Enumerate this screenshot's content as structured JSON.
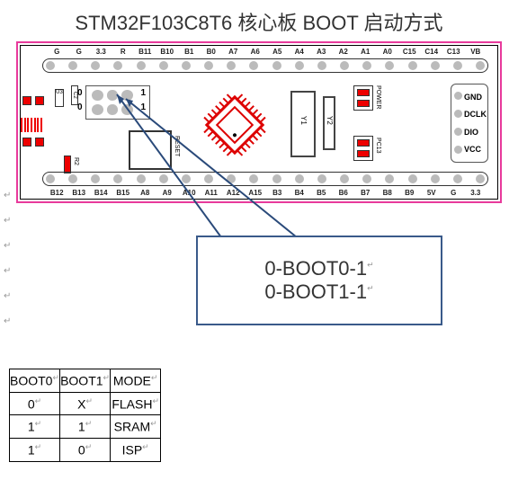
{
  "title": "STM32F103C8T6 核心板 BOOT 启动方式",
  "board": {
    "pins_top": [
      "G",
      "G",
      "3.3",
      "R",
      "B11",
      "B10",
      "B1",
      "B0",
      "A7",
      "A6",
      "A5",
      "A4",
      "A3",
      "A2",
      "A1",
      "A0",
      "C15",
      "C14",
      "C13",
      "VB"
    ],
    "pins_bot": [
      "B12",
      "B13",
      "B14",
      "B15",
      "A8",
      "A9",
      "A10",
      "A11",
      "A12",
      "A15",
      "B3",
      "B4",
      "B5",
      "B6",
      "B7",
      "B8",
      "B9",
      "5V",
      "G",
      "3.3"
    ],
    "border_outer_color": "#e83a9c",
    "border_inner_color": "#000000",
    "hole_color": "#bbbbbb",
    "red": "#e00000",
    "comp_u3": "U3",
    "comp_c2": "C2",
    "comp_r2": "R2",
    "boot": {
      "left0": "0",
      "left1": "0",
      "right0": "1",
      "right1": "1"
    },
    "reset_label": "RESET",
    "osc_y1": "Y1",
    "osc_y2": "Y2",
    "led_power": "POWER",
    "led_pc13": "PC13",
    "swd_pins": [
      "GND",
      "DCLK",
      "DIO",
      "VCC"
    ]
  },
  "callout": {
    "line1": "0-BOOT0-1",
    "line2": "0-BOOT1-1",
    "border_color": "#3a5a8a",
    "arrow_color": "#2a4a7a",
    "fontsize": 22
  },
  "table": {
    "columns": [
      "BOOT0",
      "BOOT1",
      "MODE"
    ],
    "rows": [
      [
        "0",
        "X",
        "FLASH"
      ],
      [
        "1",
        "1",
        "SRAM"
      ],
      [
        "1",
        "0",
        "ISP"
      ]
    ],
    "col_widths_pct": [
      33.3,
      33.3,
      33.3
    ],
    "border_color": "#000000",
    "fontsize": 14
  },
  "margin_mark": "↵",
  "margin_count": 6,
  "cell_mark": "↵"
}
